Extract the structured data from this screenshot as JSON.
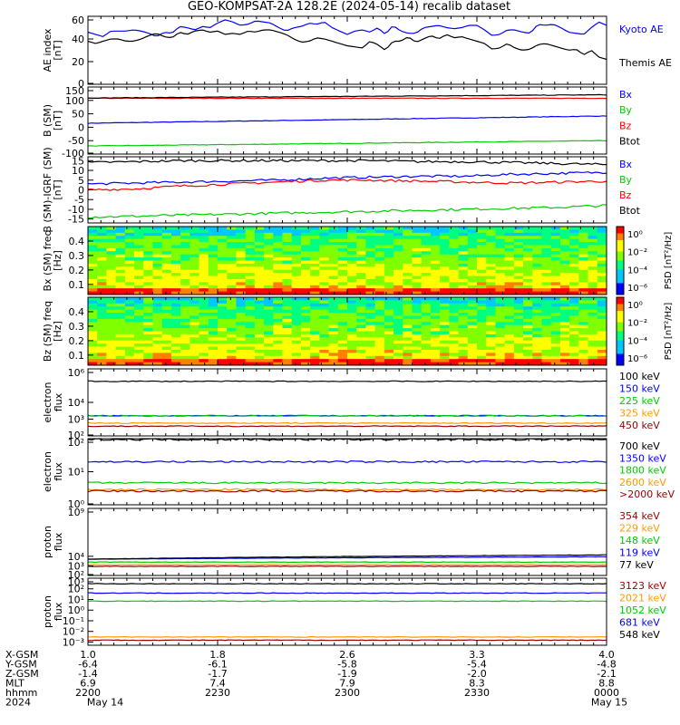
{
  "title": "GEO-KOMPSAT-2A 128.2E (2024-05-14) recalib dataset",
  "chart_data": [
    {
      "type": "line",
      "ylabel": "AE index [nT]",
      "ylim": [
        0,
        60
      ],
      "yticks": [
        "0",
        "20",
        "40",
        "60"
      ],
      "series": [
        {
          "name": "Kyoto AE",
          "color": "#0000ff",
          "values": [
            46,
            44,
            42,
            47,
            47,
            47,
            48,
            47,
            45,
            42,
            46,
            45,
            51,
            50,
            48,
            51,
            50,
            54,
            57,
            55,
            52,
            53,
            56,
            55,
            54,
            50,
            47,
            50,
            51,
            54,
            53,
            55,
            50,
            47,
            44,
            47,
            48,
            46,
            50,
            44,
            52,
            47,
            45,
            45,
            50,
            51,
            52,
            50,
            49,
            50,
            52,
            52,
            48,
            43,
            44,
            48,
            48,
            46,
            45,
            53,
            52,
            53,
            50,
            46,
            45,
            44,
            50,
            55,
            52
          ]
        },
        {
          "name": "Themis AE",
          "color": "#000000",
          "values": [
            38,
            36,
            38,
            40,
            40,
            38,
            38,
            40,
            43,
            45,
            42,
            41,
            46,
            44,
            47,
            48,
            46,
            47,
            44,
            45,
            44,
            47,
            46,
            48,
            48,
            46,
            44,
            40,
            37,
            38,
            41,
            40,
            38,
            36,
            34,
            33,
            32,
            38,
            35,
            30,
            38,
            38,
            42,
            37,
            40,
            43,
            40,
            44,
            41,
            42,
            40,
            38,
            36,
            31,
            32,
            36,
            32,
            30,
            31,
            35,
            36,
            34,
            32,
            30,
            31,
            26,
            30,
            24,
            22
          ]
        }
      ]
    },
    {
      "type": "line",
      "ylabel": "B (SM) [nT]",
      "ylim": [
        -100,
        150
      ],
      "yticks": [
        "-100",
        "-50",
        "0",
        "50",
        "100",
        "150"
      ],
      "series": [
        {
          "name": "Bx",
          "color": "#0000ff",
          "start": 15,
          "end": 42
        },
        {
          "name": "By",
          "color": "#00cc00",
          "start": -70,
          "end": -50
        },
        {
          "name": "Bz",
          "color": "#ff0000",
          "start": 108,
          "end": 108
        },
        {
          "name": "Btot",
          "color": "#000000",
          "start": 109,
          "end": 121
        }
      ]
    },
    {
      "type": "line",
      "ylabel": "B (SM)-IGRF (SM) [nT]",
      "ylim": [
        -17,
        17
      ],
      "yticks": [
        "-15",
        "-10",
        "-5",
        "0",
        "5",
        "10",
        "15"
      ],
      "series": [
        {
          "name": "Bx",
          "color": "#0000ff",
          "values": [
            3,
            3.5,
            4,
            4.5,
            5,
            6,
            6.5,
            7,
            7,
            8,
            8.5,
            9
          ]
        },
        {
          "name": "By",
          "color": "#00cc00",
          "values": [
            -14,
            -13.5,
            -13,
            -12.5,
            -12,
            -11.5,
            -11,
            -10.5,
            -10,
            -9.5,
            -9,
            -8
          ]
        },
        {
          "name": "Bz",
          "color": "#ff0000",
          "values": [
            0,
            0.5,
            2,
            3,
            4,
            5,
            5,
            4.5,
            4,
            3.5,
            4,
            4.5
          ]
        },
        {
          "name": "Btot",
          "color": "#000000",
          "values": [
            14,
            14.5,
            15,
            15,
            15,
            15,
            15,
            14.5,
            14.5,
            14,
            13.5,
            13
          ]
        }
      ]
    },
    {
      "type": "heatmap",
      "ylabel": "Bx (SM) freq [Hz]",
      "ylim": [
        0.03,
        0.5
      ],
      "yticks": [
        "0.1",
        "0.2",
        "0.3",
        "0.4"
      ],
      "colorbar_label": "PSD [nT²/Hz]",
      "colorbar_ticks": [
        "10⁰",
        "10⁻²",
        "10⁻⁴",
        "10⁻⁶"
      ]
    },
    {
      "type": "heatmap",
      "ylabel": "Bz (SM) freq [Hz]",
      "ylim": [
        0.03,
        0.5
      ],
      "yticks": [
        "0.1",
        "0.2",
        "0.3",
        "0.4"
      ],
      "colorbar_label": "PSD [nT²/Hz]",
      "colorbar_ticks": [
        "10⁰",
        "10⁻²",
        "10⁻⁴",
        "10⁻⁶"
      ]
    },
    {
      "type": "line",
      "ylabel": "electron flux",
      "log": true,
      "ylim": [
        100,
        1000000
      ],
      "yticks": [
        "10²",
        "10³",
        "10⁴",
        "10⁶"
      ],
      "series": [
        {
          "name": "100 keV",
          "color": "#000000",
          "level": 180000
        },
        {
          "name": "150 keV",
          "color": "#0000ff",
          "level": 1600
        },
        {
          "name": "225 keV",
          "color": "#00cc00",
          "level": 1550
        },
        {
          "name": "325 keV",
          "color": "#ff9900",
          "level": 580
        },
        {
          "name": "450 keV",
          "color": "#990000",
          "level": 380
        }
      ]
    },
    {
      "type": "line",
      "ylabel": "electron flux",
      "log": true,
      "ylim": [
        1,
        100
      ],
      "yticks": [
        "10⁰",
        "10¹",
        "10²"
      ],
      "series": [
        {
          "name": "700 keV",
          "color": "#000000",
          "level": 95
        },
        {
          "name": "1350 keV",
          "color": "#0000ff",
          "level": 20
        },
        {
          "name": "1800 keV",
          "color": "#00cc00",
          "level": 4.6
        },
        {
          "name": "2600 keV",
          "color": "#ff9900",
          "level": 2.9
        },
        {
          "name": ">2000 keV",
          "color": "#990000",
          "level": 2.6
        }
      ]
    },
    {
      "type": "line",
      "ylabel": "proton flux",
      "log": true,
      "ylim": [
        100,
        1000000000
      ],
      "yticks": [
        "10²",
        "10³",
        "10⁴",
        "10⁹"
      ],
      "series": [
        {
          "name": "354 keV",
          "color": "#990000",
          "level": 900
        },
        {
          "name": "229 keV",
          "color": "#ff9900",
          "level": 1300
        },
        {
          "name": "148 keV",
          "color": "#00cc00",
          "level": 2500
        },
        {
          "name": "119 keV",
          "color": "#0000ff",
          "start": 5000,
          "end": 9000
        },
        {
          "name": "77 keV",
          "color": "#000000",
          "start": 5000,
          "end": 14000
        }
      ]
    },
    {
      "type": "line",
      "ylabel": "proton flux",
      "log": true,
      "ylim": [
        0.0005,
        1000
      ],
      "yticks": [
        "10⁻³",
        "10⁻²",
        "10⁻¹",
        "10⁰",
        "10¹",
        "10²",
        "10³"
      ],
      "series": [
        {
          "name": "3123 keV",
          "color": "#990000",
          "level": 0.0015
        },
        {
          "name": "2021 keV",
          "color": "#ff9900",
          "level": 0.003
        },
        {
          "name": "1052 keV",
          "color": "#00cc00",
          "level": 7
        },
        {
          "name": "681 keV",
          "color": "#0000ff",
          "level": 40
        },
        {
          "name": "548 keV",
          "color": "#000000",
          "level": 300
        }
      ]
    }
  ],
  "ephemeris": {
    "labels": [
      "X-GSM",
      "Y-GSM",
      "Z-GSM",
      "MLT",
      "hhmm",
      "2024"
    ],
    "columns": [
      [
        "1.0",
        "-6.4",
        "-1.4",
        "6.9",
        "2200",
        "May 14"
      ],
      [
        "1.8",
        "-6.1",
        "-1.7",
        "7.4",
        "2230",
        ""
      ],
      [
        "2.6",
        "-5.8",
        "-1.9",
        "7.9",
        "2300",
        ""
      ],
      [
        "3.3",
        "-5.4",
        "-2.0",
        "8.3",
        "2330",
        ""
      ],
      [
        "4.0",
        "-4.8",
        "-2.1",
        "8.8",
        "0000",
        "May 15"
      ]
    ]
  }
}
